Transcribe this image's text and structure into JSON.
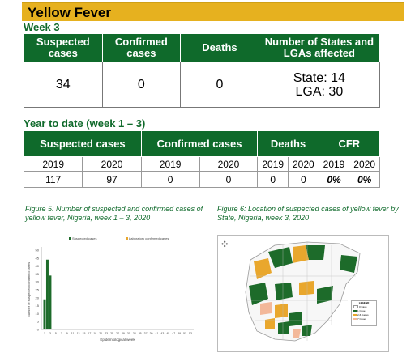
{
  "banner": {
    "title": "Yellow Fever"
  },
  "week_section": {
    "label": "Week 3",
    "headers": [
      "Suspected cases",
      "Confirmed cases",
      "Deaths",
      "Number of States and LGAs affected"
    ],
    "values": {
      "suspected": "34",
      "confirmed": "0",
      "deaths": "0",
      "state": "State: 14",
      "lga": "LGA: 30"
    }
  },
  "ytd_section": {
    "label": "Year to date (week 1 – 3)",
    "headers": [
      "Suspected cases",
      "Confirmed cases",
      "Deaths",
      "CFR"
    ],
    "years": [
      "2019",
      "2020",
      "2019",
      "2020",
      "2019",
      "2020",
      "2019",
      "2020"
    ],
    "values": [
      "117",
      "97",
      "0",
      "0",
      "0",
      "0",
      "0%",
      "0%"
    ]
  },
  "figure5": {
    "caption": "Figure 5: Number of suspected and confirmed cases of yellow fever, Nigeria, week 1 – 3, 2020"
  },
  "figure6": {
    "caption": "Figure 6: Location of suspected cases of yellow fever by State, Nigeria, week 3, 2020",
    "legend_title": "LEGEND",
    "legend_items": [
      "0 Case",
      "1 Case",
      "2-6 Cases",
      "7 Cases"
    ],
    "legend_colors": [
      "#ffffff",
      "#1d6b2a",
      "#e9a72d",
      "#f3b89a"
    ]
  },
  "chart_data": {
    "type": "bar",
    "xlabel": "Epidemiological week",
    "ylabel": "Number of suspected/confirmed cases",
    "ylim": [
      0,
      50
    ],
    "yticks": [
      0,
      5,
      10,
      15,
      20,
      25,
      30,
      35,
      40,
      45,
      50
    ],
    "categories": [
      "1",
      "3",
      "5",
      "7",
      "9",
      "11",
      "13",
      "15",
      "17",
      "19",
      "21",
      "23",
      "25",
      "27",
      "29",
      "31",
      "33",
      "35",
      "37",
      "39",
      "41",
      "43",
      "45",
      "47",
      "49",
      "51",
      "53"
    ],
    "series": [
      {
        "name": "Suspected cases",
        "color": "#1d6b2a",
        "values": {
          "1": 19,
          "2": 44,
          "3": 34
        }
      },
      {
        "name": "Laboratory confirmed cases",
        "color": "#e9a72d",
        "values": {
          "1": 0,
          "2": 0,
          "3": 0
        }
      }
    ],
    "legend": "top"
  }
}
